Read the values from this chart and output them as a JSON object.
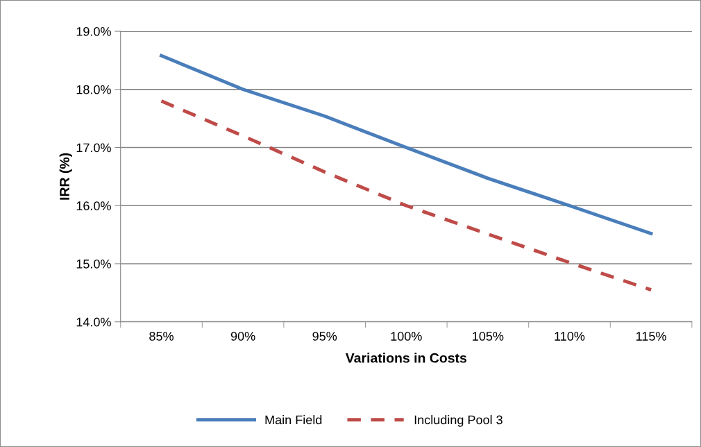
{
  "chart_data": {
    "type": "line",
    "xlabel": "Variations in Costs",
    "ylabel": "IRR (%)",
    "categories": [
      "85%",
      "90%",
      "95%",
      "100%",
      "105%",
      "110%",
      "115%"
    ],
    "series": [
      {
        "name": "Main Field",
        "color": "#4a7ebb",
        "line_style": "solid",
        "values": [
          18.58,
          18.0,
          17.54,
          17.0,
          16.47,
          16.0,
          15.52
        ]
      },
      {
        "name": "Including Pool 3",
        "color": "#be4b48",
        "line_style": "dashed",
        "values": [
          17.8,
          17.2,
          16.58,
          16.0,
          15.51,
          15.02,
          14.55
        ]
      }
    ],
    "ylim": [
      14,
      19
    ],
    "yticks": [
      {
        "value": 14,
        "label": "14.0%"
      },
      {
        "value": 15,
        "label": "15.0%"
      },
      {
        "value": 16,
        "label": "16.0%"
      },
      {
        "value": 17,
        "label": "17.0%"
      },
      {
        "value": 18,
        "label": "18.0%"
      },
      {
        "value": 19,
        "label": "19.0%"
      }
    ],
    "grid": "y",
    "legend": "bottom",
    "marker": "none"
  }
}
